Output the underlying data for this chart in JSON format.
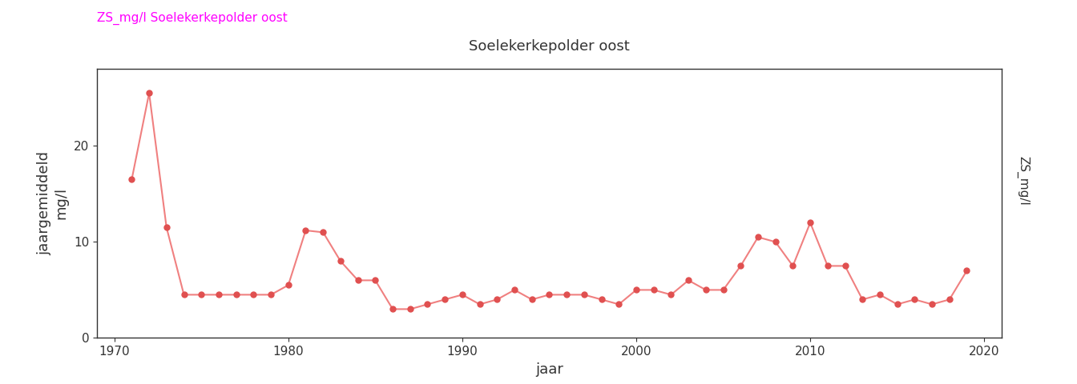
{
  "title_legend": "ZS_mg/l Soelekerkepolder oost",
  "panel_title": "Soelekerkepolder oost",
  "right_label": "ZS_mg/l",
  "xlabel": "jaar",
  "ylabel": "jaargemiddeld\nmg/l",
  "line_color": "#F08080",
  "marker_color": "#E05050",
  "background_color": "#FFFFFF",
  "panel_bg": "#E8E8E8",
  "grid_color": "#FFFFFF",
  "xlim": [
    1969,
    2021
  ],
  "ylim": [
    0,
    28
  ],
  "xticks": [
    1970,
    1980,
    1990,
    2000,
    2010,
    2020
  ],
  "yticks": [
    0,
    10,
    20
  ],
  "years": [
    1971,
    1972,
    1973,
    1974,
    1975,
    1976,
    1977,
    1978,
    1979,
    1980,
    1981,
    1982,
    1983,
    1984,
    1985,
    1986,
    1987,
    1988,
    1989,
    1990,
    1991,
    1992,
    1993,
    1994,
    1995,
    1996,
    1997,
    1998,
    1999,
    2000,
    2001,
    2002,
    2003,
    2004,
    2005,
    2006,
    2007,
    2008,
    2009,
    2010,
    2011,
    2012,
    2013,
    2014,
    2015,
    2016,
    2017,
    2018,
    2019
  ],
  "values": [
    16.5,
    25.5,
    11.5,
    4.5,
    4.5,
    4.5,
    4.5,
    4.5,
    4.5,
    5.5,
    11.2,
    11.0,
    8.0,
    6.0,
    6.0,
    3.0,
    3.0,
    3.5,
    4.0,
    4.5,
    3.5,
    4.0,
    5.0,
    4.0,
    4.5,
    4.5,
    4.5,
    4.0,
    3.5,
    5.0,
    5.0,
    4.5,
    6.0,
    5.0,
    5.0,
    7.5,
    10.5,
    10.0,
    7.5,
    12.0,
    7.5,
    7.5,
    4.0,
    4.5,
    3.5,
    4.0,
    3.5,
    4.0,
    7.0
  ]
}
